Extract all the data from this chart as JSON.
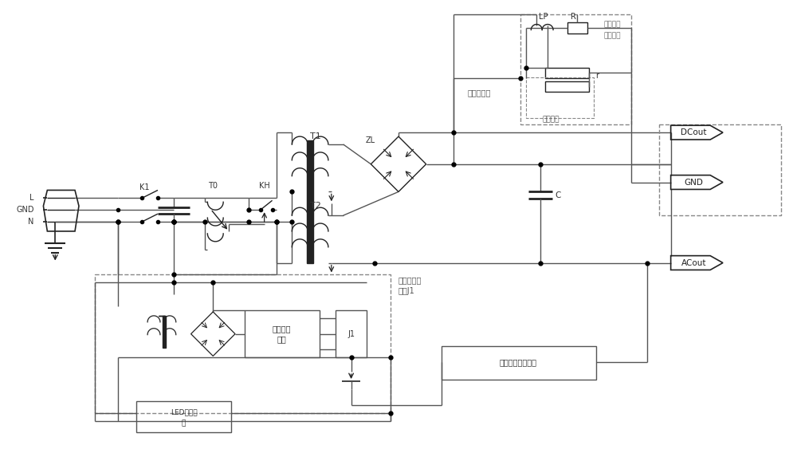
{
  "fig_width": 10.0,
  "fig_height": 5.68,
  "dpi": 100,
  "labels": {
    "L": "L",
    "GND": "GND",
    "N": "N",
    "K1": "K1",
    "T0": "T0",
    "KH": "KH",
    "T1": "T1",
    "T2": "T2",
    "ZL": "ZL",
    "C": "C",
    "LP": "LP",
    "R": "R",
    "r": "r",
    "J1": "J1",
    "DCout": "DCout",
    "GND2": "GND",
    "ACout": "ACout",
    "ext_osc": "外接示波器",
    "div_res_1": "分压电阱",
    "div_res_2": "采样模块",
    "arc_circuit": "灭磁回路",
    "dc_reg_1": "直流稳压",
    "dc_reg_2": "模块",
    "led_disp_1": "LED显示模",
    "led_disp_2": "块",
    "overcurrent_1": "过电流保护",
    "overcurrent_2": "开关J1",
    "volt_curr": "电压电流检测模块"
  },
  "lc": "#555555",
  "dk": "#222222",
  "gray": "#888888"
}
